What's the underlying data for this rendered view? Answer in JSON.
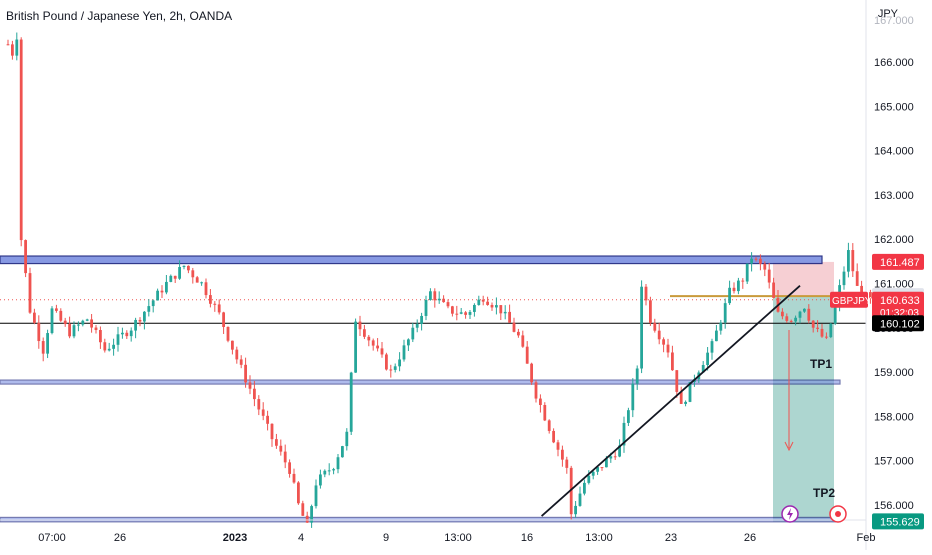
{
  "header": {
    "title": "British Pound / Japanese Yen, 2h, OANDA",
    "currency": "JPY"
  },
  "colors": {
    "up": "#26a69a",
    "down": "#ef5350",
    "zone_fill": "#7b8fe0",
    "zone_border": "#1a237e",
    "trendline": "#131722",
    "stop_zone": "#f4c7cb",
    "target_zone": "#9fcfc8",
    "arrow": "#ef5350",
    "current_line": "#ef5350",
    "label_red": "#f23645",
    "label_grey": "#e0e3eb",
    "label_black": "#000000",
    "label_green": "#089981",
    "entry_line": "#c99a3a"
  },
  "chart_data": {
    "type": "candlestick",
    "title": "British Pound / Japanese Yen, 2h, OANDA",
    "symbol": "GBPJPY",
    "y_axis_unit": "JPY",
    "ylim": [
      155.35,
      166.9
    ],
    "y_ticks": [
      "166.000",
      "165.000",
      "164.000",
      "163.000",
      "162.000",
      "161.000",
      "160.000",
      "159.000",
      "158.000",
      "157.000",
      "156.000"
    ],
    "x_ticks": [
      "07:00",
      "26",
      "2023",
      "4",
      "9",
      "13:00",
      "16",
      "13:00",
      "23",
      "26",
      "Feb"
    ],
    "grid": false,
    "price_path": [
      [
        0,
        166.4
      ],
      [
        1,
        166.2
      ],
      [
        2,
        166.6
      ],
      [
        3,
        162.0
      ],
      [
        5,
        160.4
      ],
      [
        8,
        159.5
      ],
      [
        10,
        160.4
      ],
      [
        14,
        159.9
      ],
      [
        18,
        160.2
      ],
      [
        22,
        159.5
      ],
      [
        28,
        160.0
      ],
      [
        32,
        160.5
      ],
      [
        36,
        161.0
      ],
      [
        40,
        161.4
      ],
      [
        44,
        161.0
      ],
      [
        48,
        160.3
      ],
      [
        52,
        159.3
      ],
      [
        56,
        158.4
      ],
      [
        60,
        157.5
      ],
      [
        64,
        156.8
      ],
      [
        66,
        156.0
      ],
      [
        68,
        155.5
      ],
      [
        70,
        156.5
      ],
      [
        74,
        156.9
      ],
      [
        77,
        157.6
      ],
      [
        79,
        160.2
      ],
      [
        83,
        159.6
      ],
      [
        87,
        159.0
      ],
      [
        92,
        159.9
      ],
      [
        96,
        160.8
      ],
      [
        100,
        160.4
      ],
      [
        104,
        160.3
      ],
      [
        108,
        160.7
      ],
      [
        112,
        160.4
      ],
      [
        116,
        159.8
      ],
      [
        120,
        158.5
      ],
      [
        124,
        157.5
      ],
      [
        127,
        156.8
      ],
      [
        128,
        155.8
      ],
      [
        131,
        156.5
      ],
      [
        135,
        156.9
      ],
      [
        139,
        157.3
      ],
      [
        143,
        159.1
      ],
      [
        144,
        161.0
      ],
      [
        146,
        160.2
      ],
      [
        150,
        159.5
      ],
      [
        153,
        158.2
      ],
      [
        156,
        158.9
      ],
      [
        160,
        159.6
      ],
      [
        164,
        160.8
      ],
      [
        167,
        161.1
      ],
      [
        169,
        161.6
      ],
      [
        172,
        161.3
      ],
      [
        175,
        160.3
      ],
      [
        178,
        160.2
      ],
      [
        181,
        160.5
      ],
      [
        183,
        160.0
      ],
      [
        186,
        159.7
      ],
      [
        188,
        160.5
      ],
      [
        191,
        161.7
      ],
      [
        193,
        160.9
      ],
      [
        196,
        160.6
      ]
    ],
    "horizontal_zones": [
      {
        "low": 161.45,
        "high": 161.62
      },
      {
        "low": 158.73,
        "high": 158.82
      },
      {
        "low": 155.62,
        "high": 155.72
      }
    ],
    "horizontal_lines": [
      {
        "price": 160.102
      },
      {
        "price": 160.715
      }
    ],
    "trendline": [
      [
        124,
        155.75
      ],
      [
        198,
        160.95
      ]
    ],
    "position": {
      "direction": "short",
      "entry": 160.715,
      "stop": 161.487,
      "target": 155.629,
      "tp1_label": "TP1",
      "tp2_label": "TP2"
    },
    "price_labels": [
      {
        "key": "stop",
        "price": 161.487,
        "text": "161.487"
      },
      {
        "key": "entry",
        "price": 160.715,
        "text": "160.715"
      },
      {
        "key": "last",
        "price": 160.633,
        "text": "160.633",
        "symbol": "GBPJPY",
        "countdown": "01:32:03"
      },
      {
        "key": "support",
        "price": 160.102,
        "text": "160.102"
      },
      {
        "key": "target",
        "price": 155.629,
        "text": "155.629"
      }
    ],
    "last_price": 160.633
  }
}
